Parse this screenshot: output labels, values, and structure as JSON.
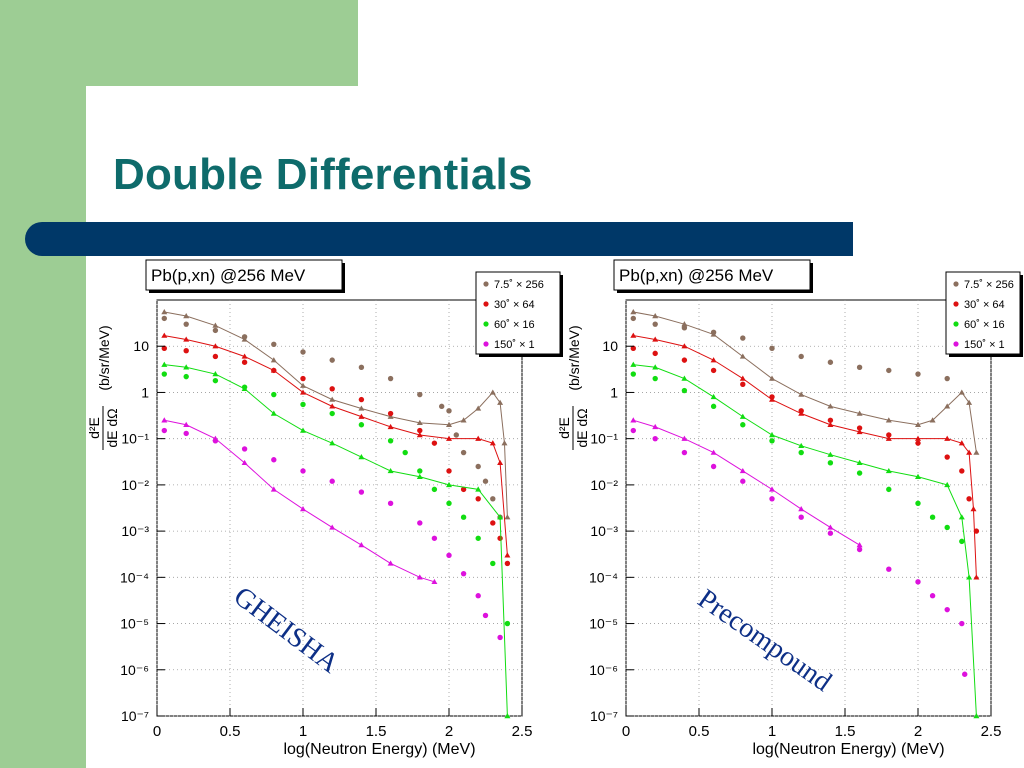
{
  "slide": {
    "title": "Double Differentials",
    "colors": {
      "title": "#0e6b6b",
      "bar": "#003868",
      "side": "#9dcd94"
    }
  },
  "chart_data": [
    {
      "type": "scatter",
      "title": "Pb(p,xn) @256 MeV",
      "annotation": "GHEISHA",
      "xlabel": "log(Neutron Energy) (MeV)",
      "ylabel_lines": [
        "d²E",
        "dE dΩ",
        "(b/sr/MeV)"
      ],
      "xlim": [
        0,
        2.5
      ],
      "ylim": [
        1e-07,
        100
      ],
      "yscale": "log",
      "grid": true,
      "legend": "top-right",
      "x_ticks": [
        "0",
        "0.5",
        "1",
        "1.5",
        "2",
        "2.5"
      ],
      "y_ticks": [
        {
          "label": "10",
          "value": 10
        },
        {
          "label": "1",
          "value": 1
        },
        {
          "label": "10⁻¹",
          "value": 0.1
        },
        {
          "label": "10⁻²",
          "value": 0.01
        },
        {
          "label": "10⁻³",
          "value": 0.001
        },
        {
          "label": "10⁻⁴",
          "value": 0.0001
        },
        {
          "label": "10⁻⁵",
          "value": 1e-05
        },
        {
          "label": "10⁻⁶",
          "value": 1e-06
        },
        {
          "label": "10⁻⁷",
          "value": 1e-07
        }
      ],
      "series": [
        {
          "name": "7.5˚ × 256",
          "color": "#8b6f5e",
          "data_points": [
            [
              0.05,
              40
            ],
            [
              0.2,
              30
            ],
            [
              0.4,
              22
            ],
            [
              0.6,
              16
            ],
            [
              0.8,
              11
            ],
            [
              1.0,
              7.5
            ],
            [
              1.2,
              5
            ],
            [
              1.4,
              3.5
            ],
            [
              1.6,
              2.0
            ],
            [
              1.8,
              0.9
            ],
            [
              1.95,
              0.5
            ],
            [
              2.0,
              0.4
            ],
            [
              2.05,
              0.12
            ],
            [
              2.1,
              0.05
            ],
            [
              2.2,
              0.025
            ],
            [
              2.25,
              0.012
            ],
            [
              2.3,
              0.005
            ],
            [
              2.35,
              0.002
            ]
          ],
          "calc_points": [
            [
              0.05,
              55
            ],
            [
              0.2,
              45
            ],
            [
              0.4,
              28
            ],
            [
              0.6,
              14
            ],
            [
              0.8,
              5
            ],
            [
              1.0,
              1.4
            ],
            [
              1.2,
              0.7
            ],
            [
              1.4,
              0.45
            ],
            [
              1.6,
              0.3
            ],
            [
              1.8,
              0.22
            ],
            [
              2.0,
              0.2
            ],
            [
              2.1,
              0.25
            ],
            [
              2.2,
              0.45
            ],
            [
              2.3,
              1.0
            ],
            [
              2.35,
              0.6
            ],
            [
              2.38,
              0.08
            ],
            [
              2.4,
              0.002
            ]
          ]
        },
        {
          "name": "30˚ × 64",
          "color": "#dd1111",
          "data_points": [
            [
              0.05,
              9
            ],
            [
              0.2,
              8
            ],
            [
              0.4,
              6
            ],
            [
              0.6,
              4.5
            ],
            [
              0.8,
              3
            ],
            [
              1.0,
              2.0
            ],
            [
              1.2,
              1.2
            ],
            [
              1.4,
              0.7
            ],
            [
              1.6,
              0.35
            ],
            [
              1.8,
              0.15
            ],
            [
              1.9,
              0.08
            ],
            [
              2.0,
              0.02
            ],
            [
              2.1,
              0.008
            ],
            [
              2.2,
              0.005
            ],
            [
              2.3,
              0.0015
            ],
            [
              2.35,
              0.0007
            ],
            [
              2.4,
              0.0002
            ]
          ],
          "calc_points": [
            [
              0.05,
              17
            ],
            [
              0.2,
              14
            ],
            [
              0.4,
              10
            ],
            [
              0.6,
              6
            ],
            [
              0.8,
              3
            ],
            [
              1.0,
              1.0
            ],
            [
              1.2,
              0.5
            ],
            [
              1.4,
              0.3
            ],
            [
              1.6,
              0.18
            ],
            [
              1.8,
              0.12
            ],
            [
              2.0,
              0.1
            ],
            [
              2.2,
              0.1
            ],
            [
              2.3,
              0.08
            ],
            [
              2.35,
              0.03
            ],
            [
              2.4,
              0.0003
            ]
          ]
        },
        {
          "name": "60˚ × 16",
          "color": "#11dd11",
          "data_points": [
            [
              0.05,
              2.5
            ],
            [
              0.2,
              2.2
            ],
            [
              0.4,
              1.8
            ],
            [
              0.6,
              1.3
            ],
            [
              0.8,
              0.9
            ],
            [
              1.0,
              0.55
            ],
            [
              1.2,
              0.35
            ],
            [
              1.4,
              0.2
            ],
            [
              1.6,
              0.09
            ],
            [
              1.7,
              0.05
            ],
            [
              1.8,
              0.02
            ],
            [
              1.9,
              0.008
            ],
            [
              2.0,
              0.004
            ],
            [
              2.1,
              0.002
            ],
            [
              2.2,
              0.0007
            ],
            [
              2.3,
              0.0002
            ],
            [
              2.4,
              1e-05
            ]
          ],
          "calc_points": [
            [
              0.05,
              4
            ],
            [
              0.2,
              3.5
            ],
            [
              0.4,
              2.5
            ],
            [
              0.6,
              1.2
            ],
            [
              0.8,
              0.35
            ],
            [
              1.0,
              0.15
            ],
            [
              1.2,
              0.08
            ],
            [
              1.4,
              0.04
            ],
            [
              1.6,
              0.02
            ],
            [
              1.8,
              0.015
            ],
            [
              2.0,
              0.01
            ],
            [
              2.2,
              0.008
            ],
            [
              2.35,
              0.002
            ],
            [
              2.4,
              1e-07
            ]
          ]
        },
        {
          "name": "150˚ × 1",
          "color": "#dd11dd",
          "data_points": [
            [
              0.05,
              0.15
            ],
            [
              0.2,
              0.13
            ],
            [
              0.4,
              0.09
            ],
            [
              0.6,
              0.06
            ],
            [
              0.8,
              0.035
            ],
            [
              1.0,
              0.02
            ],
            [
              1.2,
              0.012
            ],
            [
              1.4,
              0.007
            ],
            [
              1.6,
              0.004
            ],
            [
              1.8,
              0.0015
            ],
            [
              1.9,
              0.0007
            ],
            [
              2.0,
              0.0003
            ],
            [
              2.1,
              0.00012
            ],
            [
              2.2,
              4e-05
            ],
            [
              2.25,
              1.5e-05
            ],
            [
              2.35,
              5e-06
            ]
          ],
          "calc_points": [
            [
              0.05,
              0.25
            ],
            [
              0.2,
              0.2
            ],
            [
              0.4,
              0.1
            ],
            [
              0.6,
              0.03
            ],
            [
              0.8,
              0.008
            ],
            [
              1.0,
              0.003
            ],
            [
              1.2,
              0.0012
            ],
            [
              1.4,
              0.0005
            ],
            [
              1.6,
              0.0002
            ],
            [
              1.8,
              0.0001
            ],
            [
              1.9,
              8e-05
            ]
          ]
        }
      ]
    },
    {
      "type": "scatter",
      "title": "Pb(p,xn) @256 MeV",
      "annotation": "Precompound",
      "xlabel": "log(Neutron Energy) (MeV)",
      "ylabel_lines": [
        "d²E",
        "dE dΩ",
        "(b/sr/MeV)"
      ],
      "xlim": [
        0,
        2.5
      ],
      "ylim": [
        1e-07,
        100
      ],
      "yscale": "log",
      "grid": true,
      "legend": "top-right",
      "x_ticks": [
        "0",
        "0.5",
        "1",
        "1.5",
        "2",
        "2.5"
      ],
      "y_ticks": [
        {
          "label": "10",
          "value": 10
        },
        {
          "label": "1",
          "value": 1
        },
        {
          "label": "10⁻¹",
          "value": 0.1
        },
        {
          "label": "10⁻²",
          "value": 0.01
        },
        {
          "label": "10⁻³",
          "value": 0.001
        },
        {
          "label": "10⁻⁴",
          "value": 0.0001
        },
        {
          "label": "10⁻⁵",
          "value": 1e-05
        },
        {
          "label": "10⁻⁶",
          "value": 1e-06
        },
        {
          "label": "10⁻⁷",
          "value": 1e-07
        }
      ],
      "series": [
        {
          "name": "7.5˚ × 256",
          "color": "#8b6f5e",
          "data_points": [
            [
              0.05,
              40
            ],
            [
              0.2,
              30
            ],
            [
              0.4,
              25
            ],
            [
              0.6,
              20
            ],
            [
              0.8,
              15
            ],
            [
              1.0,
              9
            ],
            [
              1.2,
              6
            ],
            [
              1.4,
              4.5
            ],
            [
              1.6,
              3.5
            ],
            [
              1.8,
              3
            ],
            [
              2.0,
              2.5
            ],
            [
              2.2,
              2.0
            ]
          ],
          "calc_points": [
            [
              0.05,
              55
            ],
            [
              0.2,
              45
            ],
            [
              0.4,
              30
            ],
            [
              0.6,
              18
            ],
            [
              0.8,
              6
            ],
            [
              1.0,
              2
            ],
            [
              1.2,
              0.9
            ],
            [
              1.4,
              0.5
            ],
            [
              1.6,
              0.35
            ],
            [
              1.8,
              0.25
            ],
            [
              2.0,
              0.2
            ],
            [
              2.1,
              0.25
            ],
            [
              2.2,
              0.5
            ],
            [
              2.3,
              1.0
            ],
            [
              2.35,
              0.6
            ],
            [
              2.4,
              0.05
            ]
          ]
        },
        {
          "name": "30˚ × 64",
          "color": "#dd1111",
          "data_points": [
            [
              0.05,
              9
            ],
            [
              0.2,
              7
            ],
            [
              0.4,
              5
            ],
            [
              0.6,
              3
            ],
            [
              0.8,
              1.5
            ],
            [
              1.0,
              0.8
            ],
            [
              1.2,
              0.4
            ],
            [
              1.4,
              0.25
            ],
            [
              1.6,
              0.17
            ],
            [
              1.8,
              0.12
            ],
            [
              2.0,
              0.08
            ],
            [
              2.2,
              0.04
            ],
            [
              2.3,
              0.02
            ],
            [
              2.35,
              0.005
            ],
            [
              2.4,
              0.001
            ]
          ],
          "calc_points": [
            [
              0.05,
              17
            ],
            [
              0.2,
              14
            ],
            [
              0.4,
              10
            ],
            [
              0.6,
              5
            ],
            [
              0.8,
              2
            ],
            [
              1.0,
              0.7
            ],
            [
              1.2,
              0.35
            ],
            [
              1.4,
              0.2
            ],
            [
              1.6,
              0.14
            ],
            [
              1.8,
              0.1
            ],
            [
              2.0,
              0.1
            ],
            [
              2.2,
              0.1
            ],
            [
              2.3,
              0.08
            ],
            [
              2.35,
              0.05
            ],
            [
              2.38,
              0.003
            ],
            [
              2.4,
              0.0001
            ]
          ]
        },
        {
          "name": "60˚ × 16",
          "color": "#11dd11",
          "data_points": [
            [
              0.05,
              2.5
            ],
            [
              0.2,
              2.0
            ],
            [
              0.4,
              1.1
            ],
            [
              0.6,
              0.5
            ],
            [
              0.8,
              0.2
            ],
            [
              1.0,
              0.09
            ],
            [
              1.2,
              0.05
            ],
            [
              1.4,
              0.03
            ],
            [
              1.6,
              0.018
            ],
            [
              1.8,
              0.008
            ],
            [
              2.0,
              0.004
            ],
            [
              2.1,
              0.002
            ],
            [
              2.2,
              0.0012
            ],
            [
              2.3,
              0.0006
            ]
          ],
          "calc_points": [
            [
              0.05,
              4
            ],
            [
              0.2,
              3.5
            ],
            [
              0.4,
              2
            ],
            [
              0.6,
              0.8
            ],
            [
              0.8,
              0.3
            ],
            [
              1.0,
              0.12
            ],
            [
              1.2,
              0.07
            ],
            [
              1.4,
              0.045
            ],
            [
              1.6,
              0.03
            ],
            [
              1.8,
              0.02
            ],
            [
              2.0,
              0.015
            ],
            [
              2.2,
              0.01
            ],
            [
              2.3,
              0.002
            ],
            [
              2.35,
              0.0001
            ],
            [
              2.4,
              1e-07
            ]
          ]
        },
        {
          "name": "150˚ × 1",
          "color": "#dd11dd",
          "data_points": [
            [
              0.05,
              0.15
            ],
            [
              0.2,
              0.1
            ],
            [
              0.4,
              0.05
            ],
            [
              0.6,
              0.025
            ],
            [
              0.8,
              0.012
            ],
            [
              1.0,
              0.005
            ],
            [
              1.2,
              0.002
            ],
            [
              1.4,
              0.0009
            ],
            [
              1.6,
              0.0004
            ],
            [
              1.8,
              0.00015
            ],
            [
              2.0,
              8e-05
            ],
            [
              2.1,
              4e-05
            ],
            [
              2.2,
              2e-05
            ],
            [
              2.3,
              1e-05
            ],
            [
              2.32,
              8e-07
            ]
          ],
          "calc_points": [
            [
              0.05,
              0.25
            ],
            [
              0.2,
              0.18
            ],
            [
              0.4,
              0.1
            ],
            [
              0.6,
              0.05
            ],
            [
              0.8,
              0.02
            ],
            [
              1.0,
              0.008
            ],
            [
              1.2,
              0.003
            ],
            [
              1.4,
              0.0012
            ],
            [
              1.6,
              0.0005
            ]
          ]
        }
      ]
    }
  ]
}
